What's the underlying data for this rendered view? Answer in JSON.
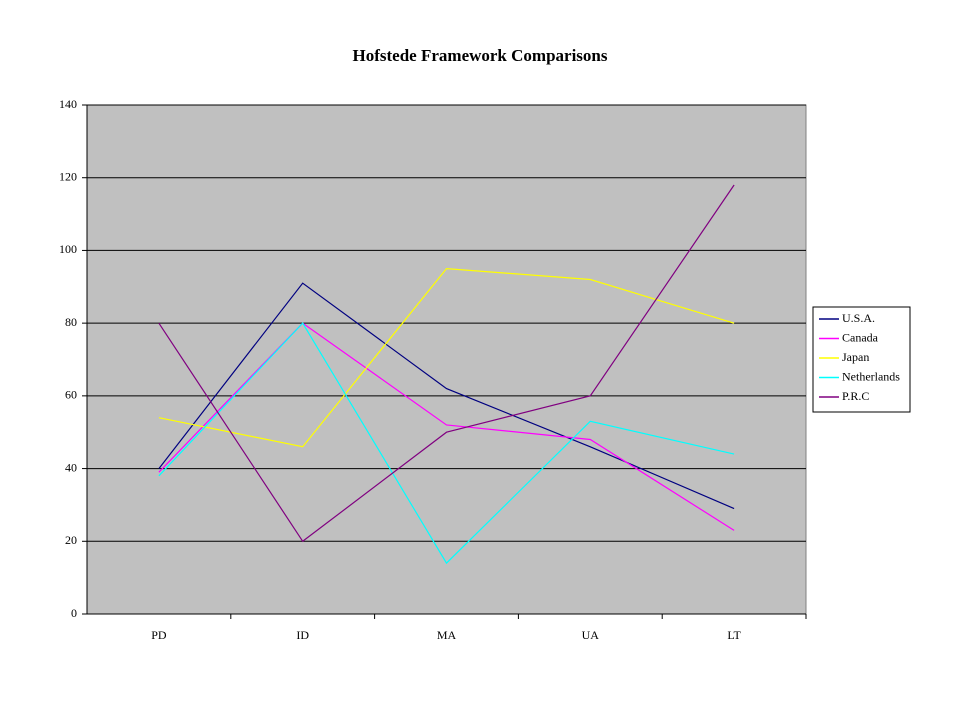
{
  "chart_data": {
    "type": "line",
    "title": "Hofstede Framework Comparisons",
    "categories": [
      "PD",
      "ID",
      "MA",
      "UA",
      "LT"
    ],
    "series": [
      {
        "name": "U.S.A.",
        "color": "#000080",
        "values": [
          40,
          91,
          62,
          46,
          29
        ]
      },
      {
        "name": "Canada",
        "color": "#ff00ff",
        "values": [
          39,
          80,
          52,
          48,
          23
        ]
      },
      {
        "name": "Japan",
        "color": "#ffff00",
        "values": [
          54,
          46,
          95,
          92,
          80
        ]
      },
      {
        "name": "Netherlands",
        "color": "#00ffff",
        "values": [
          38,
          80,
          14,
          53,
          44
        ]
      },
      {
        "name": "P.R.C",
        "color": "#800080",
        "values": [
          80,
          20,
          50,
          60,
          118
        ]
      }
    ],
    "ylim": [
      0,
      140
    ],
    "yticks": [
      0,
      20,
      40,
      60,
      80,
      100,
      120,
      140
    ],
    "grid": true,
    "legend": "right"
  }
}
